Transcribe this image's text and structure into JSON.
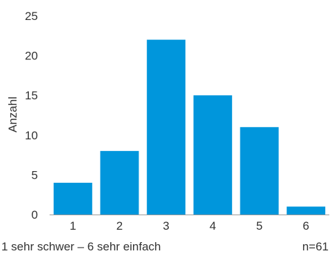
{
  "chart_data": {
    "type": "bar",
    "categories": [
      "1",
      "2",
      "3",
      "4",
      "5",
      "6"
    ],
    "values": [
      4,
      8,
      22,
      15,
      11,
      1
    ],
    "ylabel": "Anzahl",
    "ylim": [
      0,
      25
    ],
    "yticks": [
      "0",
      "5",
      "10",
      "15",
      "20",
      "25"
    ],
    "grid": false,
    "bar_color": "#0096DC",
    "baseline_color": "#9A9A9A"
  },
  "footer": {
    "scale_note": "1 sehr schwer – 6 sehr einfach",
    "sample_size": "n=61"
  }
}
